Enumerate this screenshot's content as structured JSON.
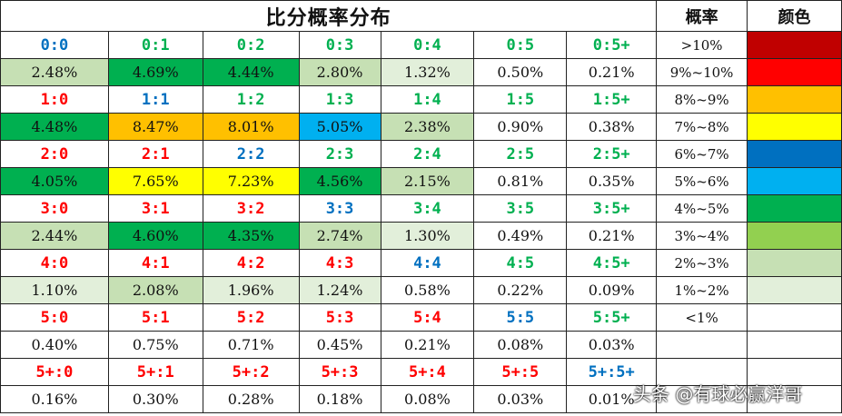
{
  "title": "比分概率分布",
  "legend_header": {
    "prob": "概率",
    "color": "颜色"
  },
  "heat_colors": {
    "c0": "#c00000",
    "c1": "#ff0000",
    "c2": "#ffc000",
    "c3": "#ffff00",
    "c4": "#0070c0",
    "c5": "#00b0f0",
    "c6": "#00b050",
    "c7": "#92d050",
    "c8": "#c6e0b4",
    "c9": "#e2efda"
  },
  "legend": [
    {
      "range": ">10%",
      "color": "#c00000"
    },
    {
      "range": "9%~10%",
      "color": "#ff0000"
    },
    {
      "range": "8%~9%",
      "color": "#ffc000"
    },
    {
      "range": "7%~8%",
      "color": "#ffff00"
    },
    {
      "range": "6%~7%",
      "color": "#0070c0"
    },
    {
      "range": "5%~6%",
      "color": "#00b0f0"
    },
    {
      "range": "4%~5%",
      "color": "#00b050"
    },
    {
      "range": "3%~4%",
      "color": "#92d050"
    },
    {
      "range": "2%~3%",
      "color": "#c6e0b4"
    },
    {
      "range": "1%~2%",
      "color": "#e2efda"
    },
    {
      "range": "<1%",
      "color": ""
    }
  ],
  "rows": [
    {
      "scores": [
        {
          "t": "0:0",
          "c": "#0070c0"
        },
        {
          "t": "0:1",
          "c": "#00b050"
        },
        {
          "t": "0:2",
          "c": "#00b050"
        },
        {
          "t": "0:3",
          "c": "#00b050"
        },
        {
          "t": "0:4",
          "c": "#00b050"
        },
        {
          "t": "0:5",
          "c": "#00b050"
        },
        {
          "t": "0:5+",
          "c": "#00b050"
        }
      ],
      "probs": [
        {
          "v": "2.48%",
          "bg": "#c6e0b4"
        },
        {
          "v": "4.69%",
          "bg": "#00b050"
        },
        {
          "v": "4.44%",
          "bg": "#00b050"
        },
        {
          "v": "2.80%",
          "bg": "#c6e0b4"
        },
        {
          "v": "1.32%",
          "bg": "#e2efda"
        },
        {
          "v": "0.50%",
          "bg": ""
        },
        {
          "v": "0.21%",
          "bg": ""
        }
      ]
    },
    {
      "scores": [
        {
          "t": "1:0",
          "c": "#ff0000"
        },
        {
          "t": "1:1",
          "c": "#0070c0"
        },
        {
          "t": "1:2",
          "c": "#00b050"
        },
        {
          "t": "1:3",
          "c": "#00b050"
        },
        {
          "t": "1:4",
          "c": "#00b050"
        },
        {
          "t": "1:5",
          "c": "#00b050"
        },
        {
          "t": "1:5+",
          "c": "#00b050"
        }
      ],
      "probs": [
        {
          "v": "4.48%",
          "bg": "#00b050"
        },
        {
          "v": "8.47%",
          "bg": "#ffc000"
        },
        {
          "v": "8.01%",
          "bg": "#ffc000"
        },
        {
          "v": "5.05%",
          "bg": "#00b0f0"
        },
        {
          "v": "2.38%",
          "bg": "#c6e0b4"
        },
        {
          "v": "0.90%",
          "bg": ""
        },
        {
          "v": "0.38%",
          "bg": ""
        }
      ]
    },
    {
      "scores": [
        {
          "t": "2:0",
          "c": "#ff0000"
        },
        {
          "t": "2:1",
          "c": "#ff0000"
        },
        {
          "t": "2:2",
          "c": "#0070c0"
        },
        {
          "t": "2:3",
          "c": "#00b050"
        },
        {
          "t": "2:4",
          "c": "#00b050"
        },
        {
          "t": "2:5",
          "c": "#00b050"
        },
        {
          "t": "2:5+",
          "c": "#00b050"
        }
      ],
      "probs": [
        {
          "v": "4.05%",
          "bg": "#00b050"
        },
        {
          "v": "7.65%",
          "bg": "#ffff00"
        },
        {
          "v": "7.23%",
          "bg": "#ffff00"
        },
        {
          "v": "4.56%",
          "bg": "#00b050"
        },
        {
          "v": "2.15%",
          "bg": "#c6e0b4"
        },
        {
          "v": "0.81%",
          "bg": ""
        },
        {
          "v": "0.35%",
          "bg": ""
        }
      ]
    },
    {
      "scores": [
        {
          "t": "3:0",
          "c": "#ff0000"
        },
        {
          "t": "3:1",
          "c": "#ff0000"
        },
        {
          "t": "3:2",
          "c": "#ff0000"
        },
        {
          "t": "3:3",
          "c": "#0070c0"
        },
        {
          "t": "3:4",
          "c": "#00b050"
        },
        {
          "t": "3:5",
          "c": "#00b050"
        },
        {
          "t": "3:5+",
          "c": "#00b050"
        }
      ],
      "probs": [
        {
          "v": "2.44%",
          "bg": "#c6e0b4"
        },
        {
          "v": "4.60%",
          "bg": "#00b050"
        },
        {
          "v": "4.35%",
          "bg": "#00b050"
        },
        {
          "v": "2.74%",
          "bg": "#c6e0b4"
        },
        {
          "v": "1.30%",
          "bg": "#e2efda"
        },
        {
          "v": "0.49%",
          "bg": ""
        },
        {
          "v": "0.21%",
          "bg": ""
        }
      ]
    },
    {
      "scores": [
        {
          "t": "4:0",
          "c": "#ff0000"
        },
        {
          "t": "4:1",
          "c": "#ff0000"
        },
        {
          "t": "4:2",
          "c": "#ff0000"
        },
        {
          "t": "4:3",
          "c": "#ff0000"
        },
        {
          "t": "4:4",
          "c": "#0070c0"
        },
        {
          "t": "4:5",
          "c": "#00b050"
        },
        {
          "t": "4:5+",
          "c": "#00b050"
        }
      ],
      "probs": [
        {
          "v": "1.10%",
          "bg": "#e2efda"
        },
        {
          "v": "2.08%",
          "bg": "#c6e0b4"
        },
        {
          "v": "1.96%",
          "bg": "#e2efda"
        },
        {
          "v": "1.24%",
          "bg": "#e2efda"
        },
        {
          "v": "0.58%",
          "bg": ""
        },
        {
          "v": "0.22%",
          "bg": ""
        },
        {
          "v": "0.09%",
          "bg": ""
        }
      ]
    },
    {
      "scores": [
        {
          "t": "5:0",
          "c": "#ff0000"
        },
        {
          "t": "5:1",
          "c": "#ff0000"
        },
        {
          "t": "5:2",
          "c": "#ff0000"
        },
        {
          "t": "5:3",
          "c": "#ff0000"
        },
        {
          "t": "5:4",
          "c": "#ff0000"
        },
        {
          "t": "5:5",
          "c": "#0070c0"
        },
        {
          "t": "5:5+",
          "c": "#00b050"
        }
      ],
      "probs": [
        {
          "v": "0.40%",
          "bg": ""
        },
        {
          "v": "0.75%",
          "bg": ""
        },
        {
          "v": "0.71%",
          "bg": ""
        },
        {
          "v": "0.45%",
          "bg": ""
        },
        {
          "v": "0.21%",
          "bg": ""
        },
        {
          "v": "0.08%",
          "bg": ""
        },
        {
          "v": "0.03%",
          "bg": ""
        }
      ]
    },
    {
      "scores": [
        {
          "t": "5+:0",
          "c": "#ff0000"
        },
        {
          "t": "5+:1",
          "c": "#ff0000"
        },
        {
          "t": "5+:2",
          "c": "#ff0000"
        },
        {
          "t": "5+:3",
          "c": "#ff0000"
        },
        {
          "t": "5+:4",
          "c": "#ff0000"
        },
        {
          "t": "5+:5",
          "c": "#ff0000"
        },
        {
          "t": "5+:5+",
          "c": "#0070c0"
        }
      ],
      "probs": [
        {
          "v": "0.16%",
          "bg": ""
        },
        {
          "v": "0.30%",
          "bg": ""
        },
        {
          "v": "0.28%",
          "bg": ""
        },
        {
          "v": "0.18%",
          "bg": ""
        },
        {
          "v": "0.08%",
          "bg": ""
        },
        {
          "v": "0.03%",
          "bg": ""
        },
        {
          "v": "0.01%",
          "bg": ""
        }
      ]
    }
  ],
  "watermark": "头条 @有球必赢洋哥"
}
